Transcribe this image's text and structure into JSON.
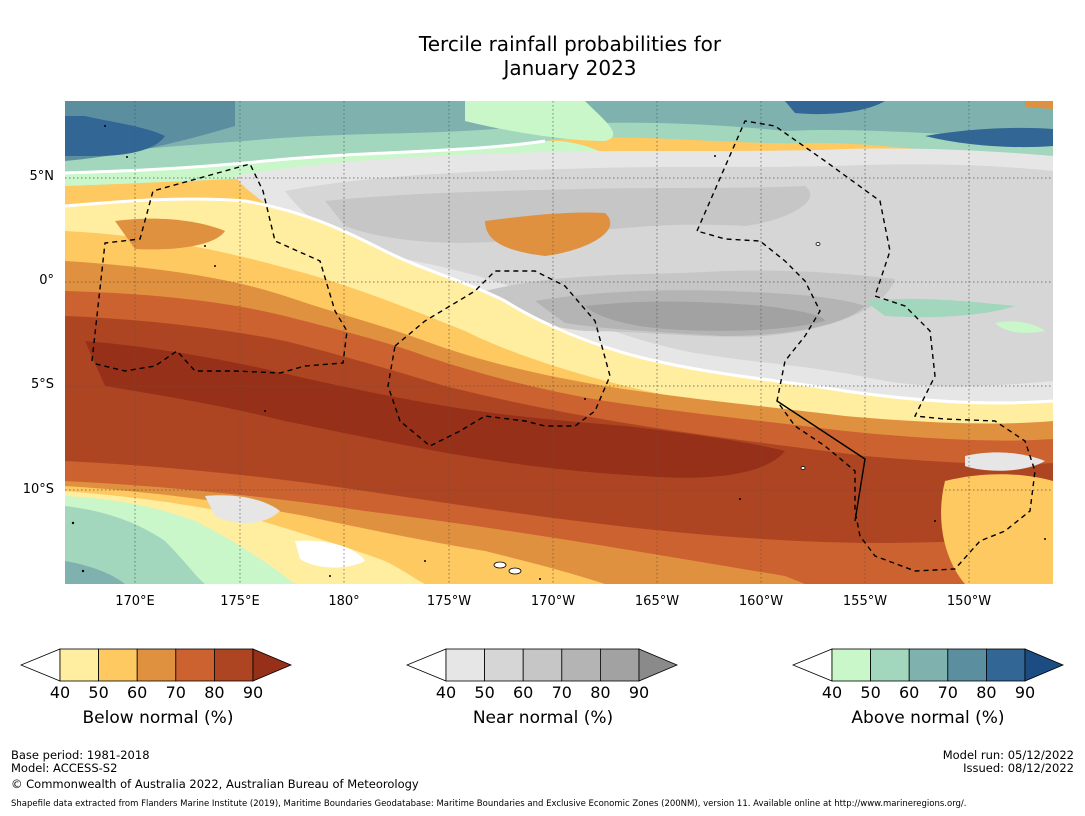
{
  "title": {
    "line1": "Tercile rainfall probabilities for",
    "line2": "January 2023"
  },
  "map": {
    "lat_labels": [
      "5°N",
      "0°",
      "5°S",
      "10°S"
    ],
    "lon_labels": [
      "170°E",
      "175°E",
      "180°",
      "175°W",
      "170°W",
      "165°W",
      "160°W",
      "155°W",
      "150°W"
    ]
  },
  "colorbars": [
    {
      "label": "Below normal (%)",
      "ticks": [
        "40",
        "50",
        "60",
        "70",
        "80",
        "90"
      ],
      "colors": [
        "#ffffff",
        "#ffeda0",
        "#fec960",
        "#e0913f",
        "#cc6230",
        "#ae4522",
        "#963019"
      ]
    },
    {
      "label": "Near normal (%)",
      "ticks": [
        "40",
        "50",
        "60",
        "70",
        "80",
        "90"
      ],
      "colors": [
        "#ffffff",
        "#e6e6e6",
        "#d6d6d6",
        "#c6c6c6",
        "#b4b4b4",
        "#a2a2a2",
        "#8a8a8a"
      ]
    },
    {
      "label": "Above normal (%)",
      "ticks": [
        "40",
        "50",
        "60",
        "70",
        "80",
        "90"
      ],
      "colors": [
        "#ffffff",
        "#c9f7c9",
        "#a2d6bd",
        "#7fb2ae",
        "#5b8fa0",
        "#326695",
        "#1b4c82"
      ]
    }
  ],
  "footer": {
    "base_period": "Base period: 1981-2018",
    "model": "Model: ACCESS-S2",
    "copyright": "© Commonwealth of Australia 2022, Australian Bureau of Meteorology",
    "model_run": "Model run: 05/12/2022",
    "issued": "Issued: 08/12/2022",
    "shapefile": "Shapefile data extracted from Flanders Marine Institute (2019), Maritime Boundaries Geodatabase: Maritime Boundaries and Exclusive Economic Zones (200NM), version 11. Available online at http://www.marineregions.org/."
  }
}
